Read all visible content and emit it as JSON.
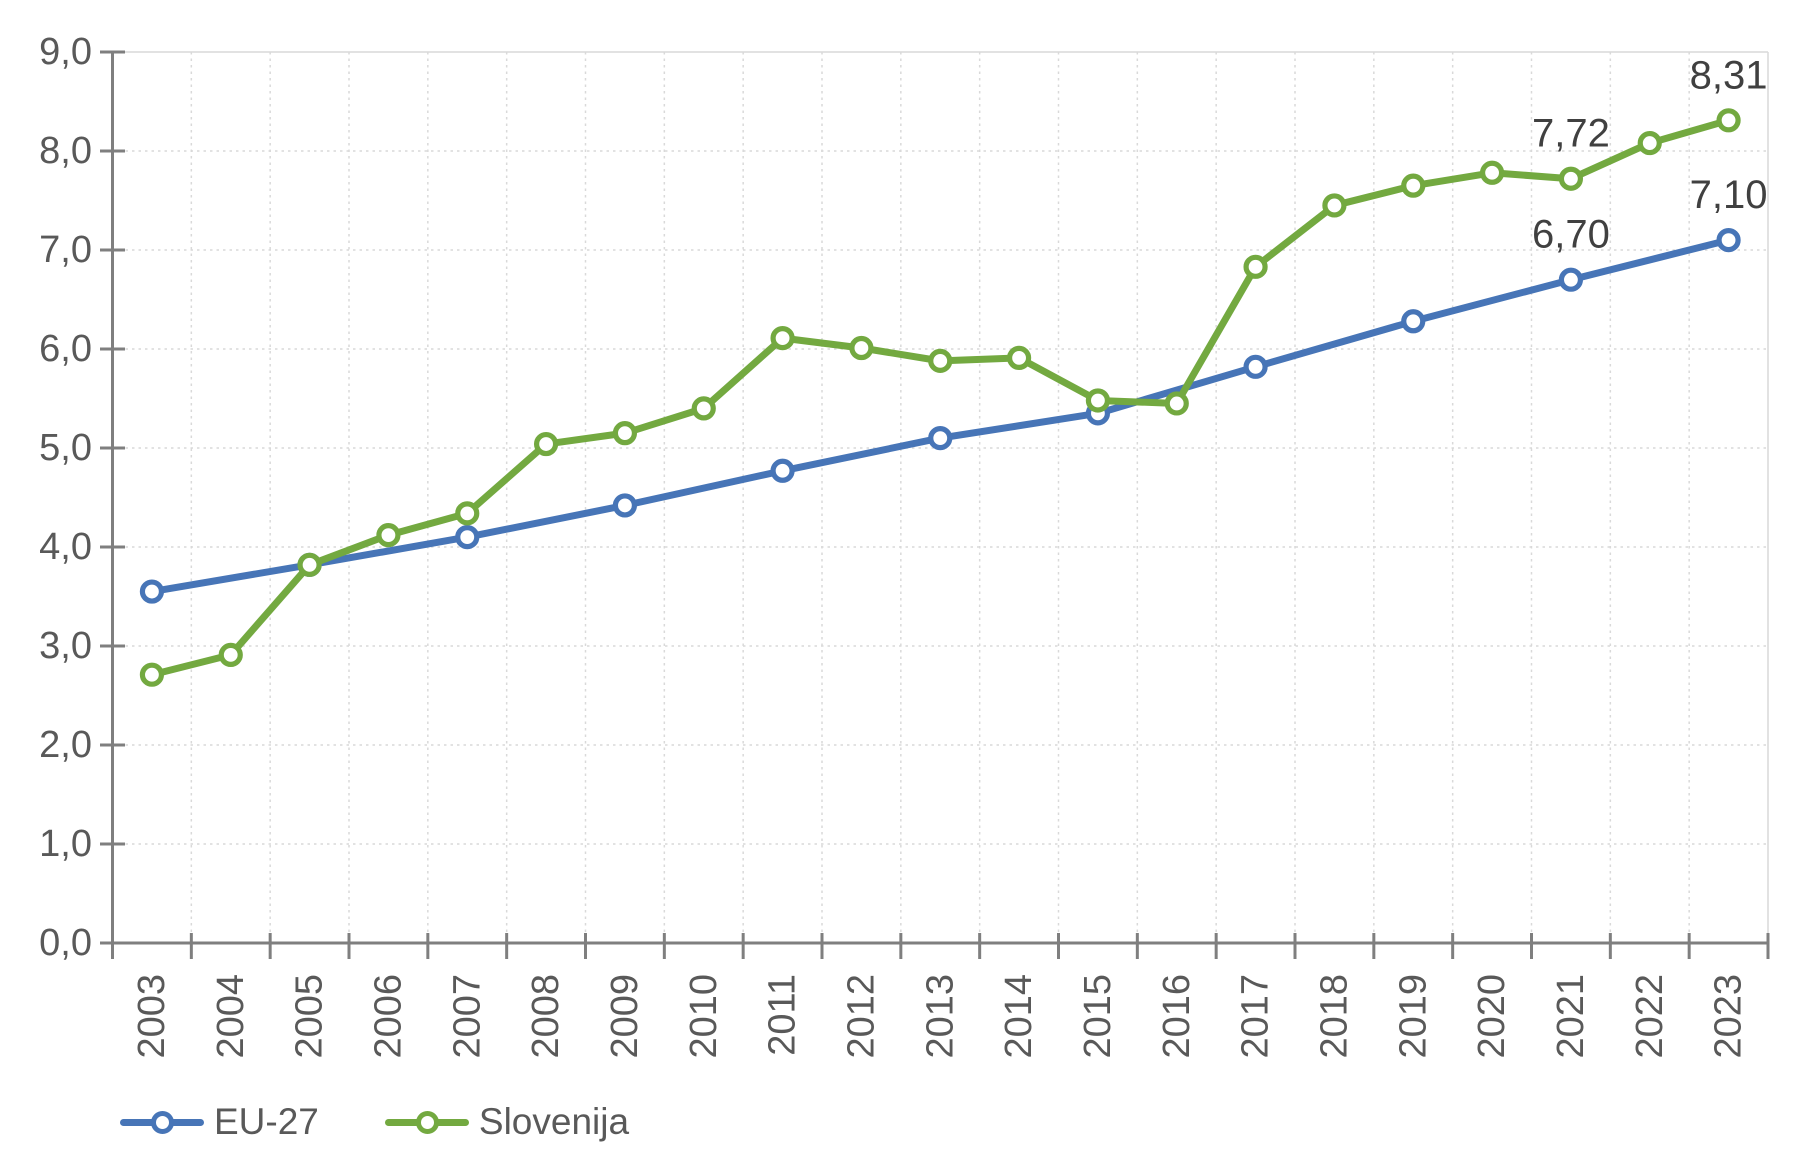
{
  "chart_data": {
    "type": "line",
    "title": "",
    "xlabel": "",
    "ylabel": "",
    "x_categories": [
      "2003",
      "2004",
      "2005",
      "2006",
      "2007",
      "2008",
      "2009",
      "2010",
      "2011",
      "2012",
      "2013",
      "2014",
      "2015",
      "2016",
      "2017",
      "2018",
      "2019",
      "2020",
      "2021",
      "2022",
      "2023"
    ],
    "series": [
      {
        "name": "EU-27",
        "color": "#4775B7",
        "points": [
          [
            2003,
            3.55
          ],
          [
            2005,
            3.82
          ],
          [
            2007,
            4.1
          ],
          [
            2009,
            4.42
          ],
          [
            2011,
            4.77
          ],
          [
            2013,
            5.1
          ],
          [
            2015,
            5.35
          ],
          [
            2017,
            5.82
          ],
          [
            2019,
            6.28
          ],
          [
            2021,
            6.7
          ],
          [
            2023,
            7.1
          ]
        ]
      },
      {
        "name": "Slovenija",
        "color": "#73A940",
        "points": [
          [
            2003,
            2.71
          ],
          [
            2004,
            2.91
          ],
          [
            2005,
            3.82
          ],
          [
            2006,
            4.12
          ],
          [
            2007,
            4.34
          ],
          [
            2008,
            5.04
          ],
          [
            2009,
            5.15
          ],
          [
            2010,
            5.4
          ],
          [
            2011,
            6.11
          ],
          [
            2012,
            6.01
          ],
          [
            2013,
            5.88
          ],
          [
            2014,
            5.91
          ],
          [
            2015,
            5.48
          ],
          [
            2016,
            5.45
          ],
          [
            2017,
            6.83
          ],
          [
            2018,
            7.45
          ],
          [
            2019,
            7.65
          ],
          [
            2020,
            7.78
          ],
          [
            2021,
            7.72
          ],
          [
            2022,
            8.08
          ],
          [
            2023,
            8.31
          ]
        ]
      }
    ],
    "data_labels": [
      {
        "series": "EU-27",
        "year": 2021,
        "text": "6,70"
      },
      {
        "series": "EU-27",
        "year": 2023,
        "text": "7,10"
      },
      {
        "series": "Slovenija",
        "year": 2021,
        "text": "7,72"
      },
      {
        "series": "Slovenija",
        "year": 2023,
        "text": "8,31"
      }
    ],
    "y_axis": {
      "min": 0,
      "max": 9,
      "step": 1,
      "tick_labels": [
        "0,0",
        "1,0",
        "2,0",
        "3,0",
        "4,0",
        "5,0",
        "6,0",
        "7,0",
        "8,0",
        "9,0"
      ]
    },
    "grid": {
      "horizontal": "dotted",
      "vertical": "dotted",
      "border_top_right": "solid"
    },
    "legend": {
      "position": "bottom-left",
      "items": [
        "EU-27",
        "Slovenija"
      ]
    },
    "colors": {
      "axis": "#7F7F7F",
      "tick_label": "#595959",
      "data_label": "#404040",
      "gridline": "#D9D9D9",
      "marker_fill": "#FFFFFF"
    }
  }
}
